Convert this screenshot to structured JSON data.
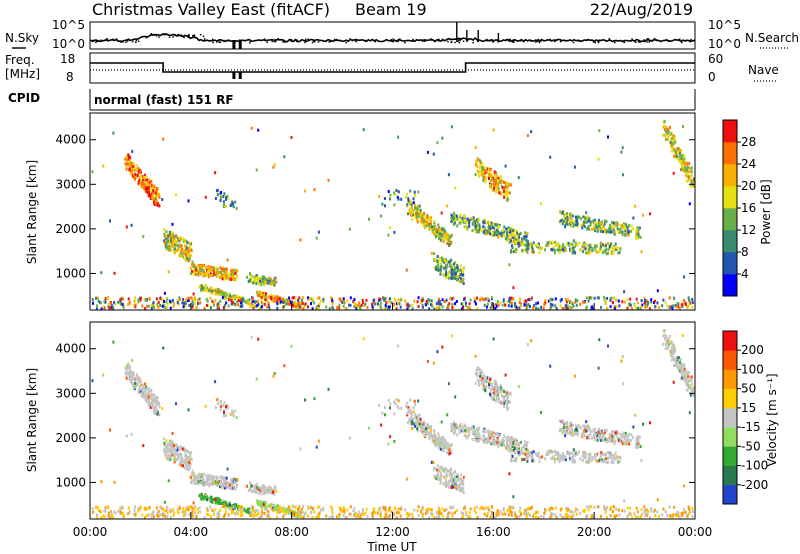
{
  "header": {
    "station": "Christmas Valley East (fitACF)",
    "beam": "Beam 19",
    "date": "22/Aug/2019"
  },
  "summary_panels": {
    "nsky_label": "N.Sky",
    "nsearch_label": "N.Search",
    "noise_ticks": [
      "10^5",
      "10^0"
    ],
    "freq_label": "Freq.",
    "freq_units": "[MHz]",
    "freq_ticks": [
      "18",
      "8"
    ],
    "nave_label": "Nave",
    "nave_ticks": [
      "60",
      "0"
    ],
    "cpid_label": "CPID",
    "cpid_value": "normal (fast) 151 RF"
  },
  "colors": {
    "power_scale": [
      "#0000ff",
      "#2255b0",
      "#3a8a70",
      "#6ab04a",
      "#e6e010",
      "#f5b000",
      "#ff7000",
      "#ee1010"
    ],
    "velocity_scale": [
      "#2244cc",
      "#2a7a50",
      "#33aa33",
      "#90dd60",
      "#c4c4c4",
      "#ffcc00",
      "#ff9900",
      "#ff5500",
      "#ee1010"
    ]
  },
  "chart_data": [
    {
      "type": "heatmap",
      "name": "power",
      "ylabel": "Slant Range [km]",
      "ylim": [
        180,
        4600
      ],
      "yticks": [
        "1000",
        "2000",
        "3000",
        "4000"
      ],
      "xlim": [
        0,
        24
      ],
      "colorbar_label": "Power [dB]",
      "colorbar_ticks": [
        "4",
        "8",
        "12",
        "16",
        "20",
        "24",
        "28"
      ],
      "clim": [
        0,
        30
      ]
    },
    {
      "type": "heatmap",
      "name": "velocity",
      "ylabel": "Slant Range [km]",
      "ylim": [
        180,
        4600
      ],
      "yticks": [
        "1000",
        "2000",
        "3000",
        "4000"
      ],
      "xlim": [
        0,
        24
      ],
      "colorbar_label": "Velocity [m s⁻¹]",
      "colorbar_ticks": [
        "200",
        "100",
        "50",
        "15",
        "-15",
        "-50",
        "-100",
        "-200"
      ],
      "clim": [
        -250,
        250
      ]
    }
  ],
  "x_axis": {
    "label": "Time UT",
    "ticks": [
      "00:00",
      "04:00",
      "08:00",
      "12:00",
      "16:00",
      "20:00",
      "00:00"
    ]
  }
}
